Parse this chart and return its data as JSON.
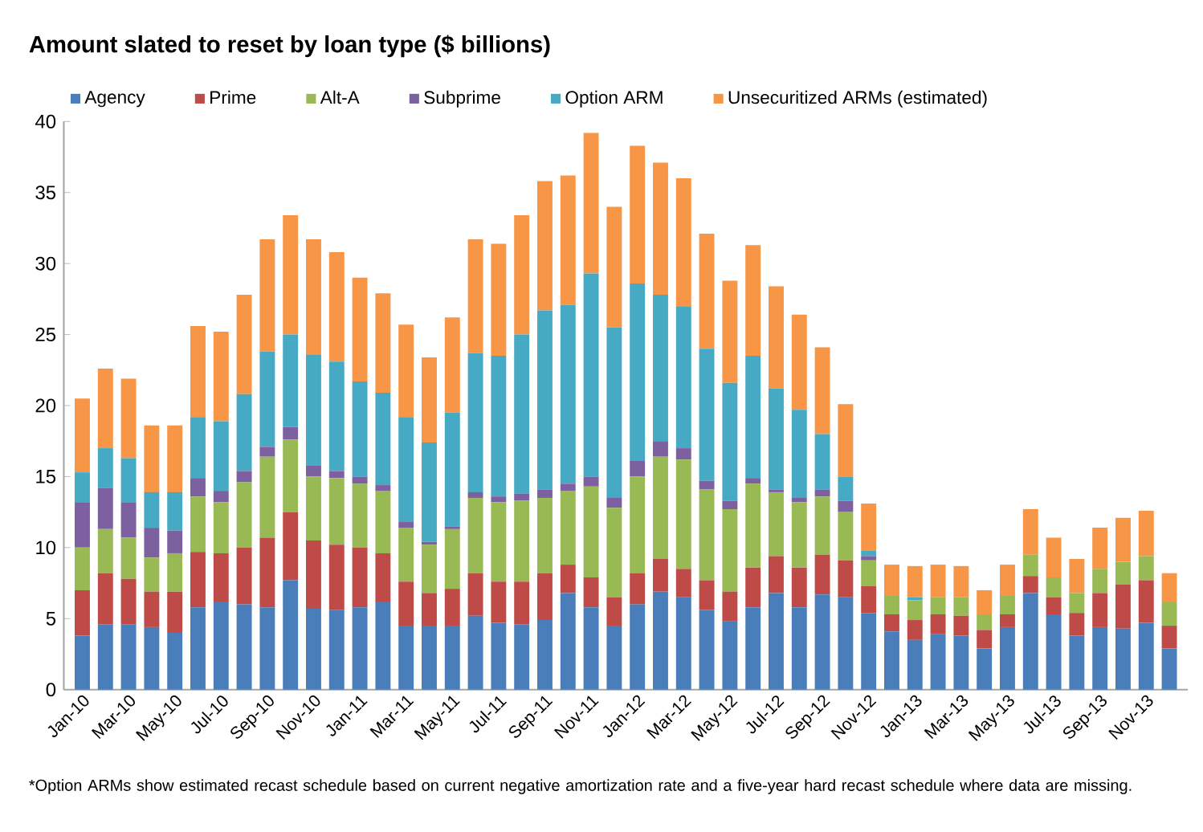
{
  "chart_data": {
    "type": "bar",
    "title": "Amount slated to reset by loan type ($ billions)",
    "categories": [
      "Jan-10",
      null,
      "Mar-10",
      null,
      "May-10",
      null,
      "Jul-10",
      null,
      "Sep-10",
      null,
      "Nov-10",
      null,
      "Jan-11",
      null,
      "Mar-11",
      null,
      "May-11",
      null,
      "Jul-11",
      null,
      "Sep-11",
      null,
      "Nov-11",
      null,
      "Jan-12",
      null,
      "Mar-12",
      null,
      "May-12",
      null,
      "Jul-12",
      null,
      "Sep-12",
      null,
      "Nov-12",
      null,
      "Jan-13",
      null,
      "Mar-13",
      null,
      "May-13",
      null,
      "Jul-13",
      null,
      "Sep-13",
      null,
      "Nov-13",
      null
    ],
    "stacked": true,
    "series": [
      {
        "name": "Agency",
        "color": "#4a7ebb",
        "values": [
          3.8,
          4.6,
          4.6,
          4.4,
          4.0,
          5.8,
          6.2,
          6.0,
          5.8,
          7.7,
          5.7,
          5.6,
          5.8,
          6.2,
          4.5,
          4.5,
          4.5,
          5.2,
          4.7,
          4.6,
          4.9,
          6.8,
          5.8,
          4.5,
          6.0,
          6.9,
          6.5,
          5.6,
          4.8,
          5.8,
          6.8,
          5.8,
          6.7,
          6.5,
          5.4,
          4.1,
          3.5,
          3.9,
          3.8,
          2.9,
          4.4,
          6.8,
          5.3,
          3.8,
          4.4,
          4.3,
          4.7,
          2.9
        ]
      },
      {
        "name": "Prime",
        "color": "#be4b48",
        "values": [
          3.2,
          3.6,
          3.2,
          2.5,
          2.9,
          3.9,
          3.4,
          4.0,
          4.9,
          4.8,
          4.8,
          4.6,
          4.2,
          3.4,
          3.1,
          2.3,
          2.6,
          3.0,
          2.9,
          3.0,
          3.3,
          2.0,
          2.1,
          2.0,
          2.2,
          2.3,
          2.0,
          2.1,
          2.1,
          2.8,
          2.6,
          2.8,
          2.8,
          2.6,
          1.9,
          1.2,
          1.4,
          1.4,
          1.4,
          1.3,
          0.9,
          1.2,
          1.2,
          1.6,
          2.4,
          3.1,
          3.0,
          1.6
        ]
      },
      {
        "name": "Alt-A",
        "color": "#98b954",
        "values": [
          3.0,
          3.1,
          2.9,
          2.4,
          2.7,
          3.9,
          3.6,
          4.6,
          5.7,
          5.1,
          4.5,
          4.7,
          4.5,
          4.4,
          3.8,
          3.4,
          4.2,
          5.3,
          5.6,
          5.7,
          5.3,
          5.2,
          6.4,
          6.3,
          6.8,
          7.2,
          7.7,
          6.4,
          5.8,
          5.9,
          4.5,
          4.6,
          4.1,
          3.4,
          1.8,
          1.3,
          1.4,
          1.2,
          1.3,
          1.1,
          1.3,
          1.5,
          1.4,
          1.4,
          1.7,
          1.6,
          1.7,
          1.7
        ]
      },
      {
        "name": "Subprime",
        "color": "#7d60a0",
        "values": [
          3.2,
          2.9,
          2.5,
          2.1,
          1.6,
          1.3,
          0.8,
          0.8,
          0.7,
          0.9,
          0.8,
          0.5,
          0.5,
          0.4,
          0.4,
          0.2,
          0.2,
          0.4,
          0.4,
          0.5,
          0.6,
          0.5,
          0.7,
          0.7,
          1.1,
          1.1,
          0.8,
          0.6,
          0.6,
          0.4,
          0.2,
          0.3,
          0.5,
          0.8,
          0.3,
          0,
          0,
          0,
          0,
          0,
          0,
          0,
          0,
          0,
          0,
          0,
          0,
          0
        ]
      },
      {
        "name": "Option ARM",
        "color": "#46aac5",
        "values": [
          2.1,
          2.8,
          3.1,
          2.5,
          2.7,
          4.3,
          4.9,
          5.4,
          6.7,
          6.5,
          7.8,
          7.7,
          6.7,
          6.5,
          7.4,
          7.0,
          8.0,
          9.8,
          9.9,
          11.2,
          12.6,
          12.6,
          14.3,
          12.0,
          12.5,
          10.3,
          10.0,
          9.3,
          8.3,
          8.6,
          7.1,
          6.2,
          3.9,
          1.7,
          0.4,
          0,
          0.2,
          0,
          0,
          0,
          0,
          0,
          0,
          0,
          0,
          0,
          0,
          0
        ]
      },
      {
        "name": "Unsecuritized ARMs (estimated)",
        "color": "#f79646",
        "values": [
          5.2,
          5.6,
          5.6,
          4.7,
          4.7,
          6.4,
          6.3,
          7.0,
          7.9,
          8.4,
          8.1,
          7.7,
          7.3,
          7.0,
          6.5,
          6.0,
          6.7,
          8.0,
          7.9,
          8.4,
          9.1,
          9.1,
          9.9,
          8.5,
          9.7,
          9.3,
          9.0,
          8.1,
          7.2,
          7.8,
          7.2,
          6.7,
          6.1,
          5.1,
          3.3,
          2.2,
          2.2,
          2.3,
          2.2,
          1.7,
          2.2,
          3.2,
          2.8,
          2.4,
          2.9,
          3.1,
          3.2,
          2.0
        ]
      }
    ],
    "ylim": [
      0,
      40
    ],
    "yticks": [
      0,
      5,
      10,
      15,
      20,
      25,
      30,
      35,
      40
    ],
    "legend": "top",
    "annotations": [
      "*Option ARMs show estimated recast schedule based on current negative amortization rate and a five-year hard recast schedule where data are missing."
    ]
  }
}
